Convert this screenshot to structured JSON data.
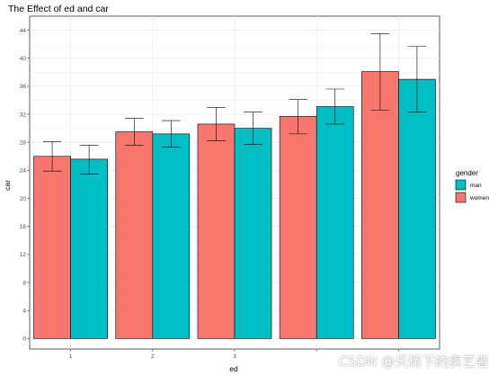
{
  "chart_data": {
    "type": "bar",
    "title": "The Effect of ed and car",
    "xlabel": "ed",
    "ylabel": "car",
    "categories": [
      "1",
      "2",
      "3",
      "",
      ""
    ],
    "ylim": [
      -1.5,
      46
    ],
    "yticks": [
      0,
      4,
      8,
      12,
      16,
      20,
      24,
      28,
      32,
      36,
      40,
      44
    ],
    "grid": true,
    "legend_title": "gender",
    "legend_position": "right",
    "series": [
      {
        "name": "man",
        "color": "#00bfc4",
        "values": [
          25.6,
          29.2,
          30.0,
          33.1,
          37.0
        ],
        "err_low": [
          23.5,
          27.3,
          27.7,
          30.6,
          32.3
        ],
        "err_high": [
          27.6,
          31.1,
          32.3,
          35.6,
          41.7
        ]
      },
      {
        "name": "women",
        "color": "#f8766d",
        "values": [
          26.0,
          29.5,
          30.6,
          31.7,
          38.1
        ],
        "err_low": [
          23.9,
          27.6,
          28.2,
          29.2,
          32.6
        ],
        "err_high": [
          28.1,
          31.4,
          33.0,
          34.1,
          43.5
        ]
      }
    ]
  },
  "watermark": "CSDN @天桥下的卖艺者"
}
